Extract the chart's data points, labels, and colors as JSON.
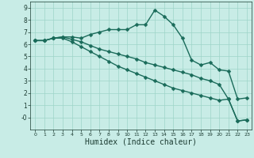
{
  "xlabel": "Humidex (Indice chaleur)",
  "background_color": "#c8ece6",
  "line_color": "#1a6b5a",
  "xlim": [
    -0.5,
    23.5
  ],
  "ylim": [
    -1.0,
    9.5
  ],
  "xticks": [
    0,
    1,
    2,
    3,
    4,
    5,
    6,
    7,
    8,
    9,
    10,
    11,
    12,
    13,
    14,
    15,
    16,
    17,
    18,
    19,
    20,
    21,
    22,
    23
  ],
  "yticks": [
    0,
    1,
    2,
    3,
    4,
    5,
    6,
    7,
    8,
    9
  ],
  "ytick_labels": [
    "-0",
    "1",
    "2",
    "3",
    "4",
    "5",
    "6",
    "7",
    "8",
    "9"
  ],
  "series": [
    {
      "x": [
        0,
        1,
        2,
        3,
        4,
        5,
        6,
        7,
        8,
        9,
        10,
        11,
        12,
        13,
        14,
        15,
        16,
        17,
        18,
        19,
        20,
        21,
        22,
        23
      ],
      "y": [
        6.3,
        6.3,
        6.5,
        6.6,
        6.6,
        6.5,
        6.8,
        7.0,
        7.2,
        7.2,
        7.2,
        7.6,
        7.6,
        8.8,
        8.3,
        7.6,
        6.5,
        4.7,
        4.3,
        4.5,
        3.9,
        3.8,
        1.5,
        1.6
      ]
    },
    {
      "x": [
        0,
        1,
        2,
        3,
        4,
        5,
        6,
        7,
        8,
        9,
        10,
        11,
        12,
        13,
        14,
        15,
        16,
        17,
        18,
        19,
        20,
        21,
        22,
        23
      ],
      "y": [
        6.3,
        6.3,
        6.5,
        6.6,
        6.4,
        6.2,
        5.9,
        5.6,
        5.4,
        5.2,
        5.0,
        4.8,
        4.5,
        4.3,
        4.1,
        3.9,
        3.7,
        3.5,
        3.2,
        3.0,
        2.7,
        1.5,
        -0.3,
        -0.2
      ]
    },
    {
      "x": [
        0,
        1,
        2,
        3,
        4,
        5,
        6,
        7,
        8,
        9,
        10,
        11,
        12,
        13,
        14,
        15,
        16,
        17,
        18,
        19,
        20,
        21,
        22,
        23
      ],
      "y": [
        6.3,
        6.3,
        6.5,
        6.5,
        6.2,
        5.8,
        5.4,
        5.0,
        4.6,
        4.2,
        3.9,
        3.6,
        3.3,
        3.0,
        2.7,
        2.4,
        2.2,
        2.0,
        1.8,
        1.6,
        1.4,
        1.5,
        -0.3,
        -0.2
      ]
    }
  ],
  "markersize": 2.5,
  "linewidth": 1.0,
  "grid_color": "#9ed4c8",
  "font_color": "#1a3a30",
  "tick_fontsize": 5.5,
  "xlabel_fontsize": 7.0
}
